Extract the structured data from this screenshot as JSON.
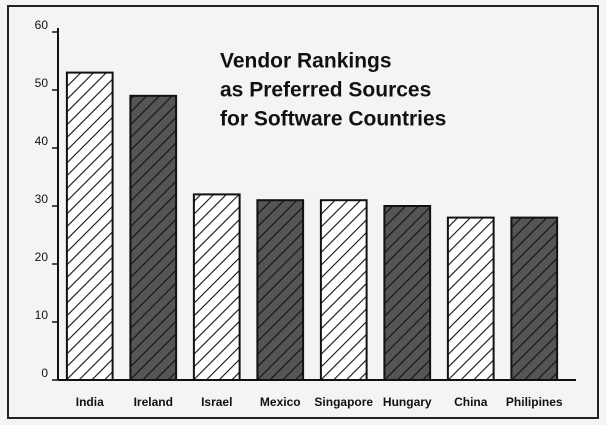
{
  "chart_data": {
    "type": "bar",
    "title": [
      "Vendor Rankings",
      "as Preferred Sources",
      "for Software Countries"
    ],
    "categories": [
      "India",
      "Ireland",
      "Israel",
      "Mexico",
      "Singapore",
      "Hungary",
      "China",
      "Philipines"
    ],
    "values": [
      53,
      49,
      32,
      31,
      31,
      30,
      28,
      28
    ],
    "colors": [
      "#ffffff",
      "#555555",
      "#ffffff",
      "#555555",
      "#ffffff",
      "#555555",
      "#ffffff",
      "#555555"
    ],
    "ylim": [
      0,
      60
    ],
    "yticks": [
      0,
      10,
      20,
      30,
      40,
      50,
      60
    ],
    "grid": false
  }
}
